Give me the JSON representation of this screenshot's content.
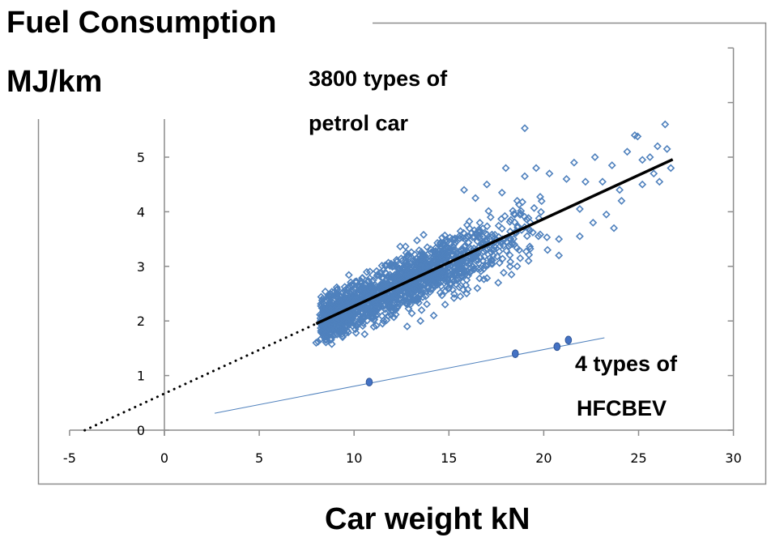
{
  "chart_data": {
    "type": "scatter",
    "title": "Fuel Consumption",
    "ylabel": "MJ/km",
    "xlabel": "Car weight  kN",
    "xlim": [
      -5,
      30
    ],
    "ylim": [
      0,
      7
    ],
    "x_ticks": [
      -5,
      0,
      5,
      10,
      15,
      20,
      25,
      30
    ],
    "y_ticks": [
      0,
      1,
      2,
      3,
      4,
      5
    ],
    "secondary_y_ticks": [
      0,
      1,
      2,
      3,
      4,
      5,
      6,
      7
    ],
    "grid": false,
    "legend": "none",
    "annotations": [
      {
        "id": "petrol",
        "lines": [
          "3800 types of",
          "petrol car"
        ]
      },
      {
        "id": "hfcbev",
        "lines": [
          "4 types of",
          "HFCBEV"
        ]
      }
    ],
    "series": [
      {
        "name": "petrol cars",
        "marker": "hollow-diamond",
        "color": "#4F81BD",
        "count": 3800,
        "x_range": [
          8.0,
          26.8
        ],
        "dense_spread": 0.22,
        "outliers": [
          [
            8.0,
            1.6
          ],
          [
            8.1,
            1.62
          ],
          [
            8.3,
            1.8
          ],
          [
            8.6,
            1.7
          ],
          [
            9.0,
            1.75
          ],
          [
            9.5,
            1.85
          ],
          [
            11.5,
            1.95
          ],
          [
            12.8,
            1.9
          ],
          [
            13.5,
            2.0
          ],
          [
            14.2,
            2.1
          ],
          [
            14.8,
            2.3
          ],
          [
            15.6,
            2.45
          ],
          [
            16.5,
            2.6
          ],
          [
            17.6,
            2.7
          ],
          [
            18.3,
            2.85
          ],
          [
            18.6,
            3.0
          ],
          [
            19.2,
            3.1
          ],
          [
            20.2,
            3.3
          ],
          [
            20.8,
            3.5
          ],
          [
            21.9,
            3.55
          ],
          [
            22.6,
            3.8
          ],
          [
            23.3,
            3.95
          ],
          [
            15.8,
            4.4
          ],
          [
            16.4,
            4.25
          ],
          [
            17.0,
            4.5
          ],
          [
            17.8,
            4.35
          ],
          [
            18.0,
            4.8
          ],
          [
            18.6,
            4.2
          ],
          [
            19.0,
            4.65
          ],
          [
            19.6,
            4.8
          ],
          [
            20.3,
            4.7
          ],
          [
            21.2,
            4.6
          ],
          [
            21.6,
            4.9
          ],
          [
            22.2,
            4.55
          ],
          [
            21.9,
            4.05
          ],
          [
            22.7,
            5.0
          ],
          [
            23.1,
            4.55
          ],
          [
            23.6,
            4.85
          ],
          [
            24.0,
            4.4
          ],
          [
            24.4,
            5.1
          ],
          [
            24.8,
            5.4
          ],
          [
            24.95,
            5.38
          ],
          [
            25.2,
            4.95
          ],
          [
            25.6,
            5.0
          ],
          [
            25.8,
            4.7
          ],
          [
            26.0,
            5.2
          ],
          [
            26.4,
            5.6
          ],
          [
            26.5,
            5.15
          ],
          [
            26.7,
            4.8
          ],
          [
            25.2,
            4.5
          ],
          [
            26.1,
            4.55
          ],
          [
            24.1,
            4.2
          ],
          [
            19.0,
            5.53
          ],
          [
            17.2,
            3.9
          ],
          [
            20.8,
            3.2
          ],
          [
            23.7,
            3.7
          ]
        ]
      },
      {
        "name": "HFCBEV",
        "marker": "filled-circle",
        "color": "#4472C4",
        "points": [
          [
            10.8,
            0.88
          ],
          [
            18.5,
            1.4
          ],
          [
            20.7,
            1.53
          ],
          [
            21.3,
            1.65
          ]
        ]
      }
    ],
    "trendlines": [
      {
        "name": "petrol linear fit",
        "style": "solid",
        "color": "#000000",
        "x": [
          8.0,
          26.8
        ],
        "slope": 0.16,
        "intercept": 0.67
      },
      {
        "name": "petrol fit backward extension",
        "style": "dotted",
        "color": "#000000",
        "x": [
          -4.2,
          8.0
        ],
        "slope": 0.16,
        "intercept": 0.67
      },
      {
        "name": "HFCBEV linear fit",
        "style": "thin",
        "color": "#4F81BD",
        "x": [
          2.65,
          23.2
        ],
        "slope": 0.0672,
        "intercept": 0.132
      }
    ]
  }
}
